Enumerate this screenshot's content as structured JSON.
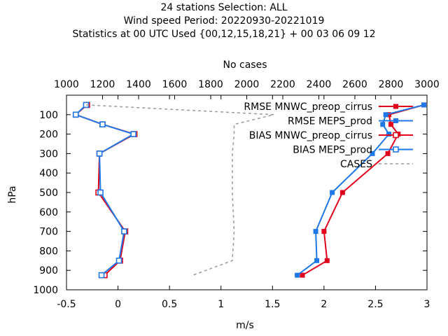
{
  "chart_data": {
    "type": "line",
    "title_lines": [
      "24 stations Selection: ALL",
      "Wind speed  Period: 20220930-20221019",
      "Statistics at 00 UTC  Used {00,12,15,18,21} + 00 03 06 09 12"
    ],
    "x2label": "No cases",
    "xlabel": "m/s",
    "ylabel": "hPa",
    "xlim": [
      -0.5,
      3
    ],
    "ylim": [
      1000,
      0
    ],
    "x2lim": [
      1000,
      3000
    ],
    "xticks": [
      "-0.5",
      "0",
      "0.5",
      "1",
      "1.5",
      "2",
      "2.5",
      "3"
    ],
    "x2ticks": [
      "1000",
      "1200",
      "1400",
      "1600",
      "1800",
      "2000",
      "2200",
      "2400",
      "2600",
      "2800",
      "3000"
    ],
    "yticks": [
      "100",
      "200",
      "300",
      "400",
      "500",
      "600",
      "700",
      "800",
      "900",
      "1000"
    ],
    "grid": false,
    "legend_position": "top-right",
    "pressure_levels": [
      50,
      100,
      150,
      200,
      300,
      500,
      700,
      850,
      925
    ],
    "series": [
      {
        "name": "RMSE MNWC_preop_cirrus",
        "color": "#e0001b",
        "marker": "filled-square",
        "axis": "x",
        "values": [
          2.97,
          2.63,
          2.65,
          2.72,
          2.62,
          2.18,
          2.0,
          2.03,
          1.79
        ]
      },
      {
        "name": "RMSE MEPS_prod",
        "color": "#1f78e8",
        "marker": "filled-square",
        "axis": "x",
        "values": [
          2.97,
          2.6,
          2.57,
          2.63,
          2.47,
          2.08,
          1.92,
          1.93,
          1.74
        ]
      },
      {
        "name": "BIAS MNWC_preop_cirrus",
        "color": "#e0001b",
        "marker": "open-square",
        "axis": "x",
        "values": [
          -0.3,
          -0.41,
          -0.15,
          0.16,
          -0.18,
          -0.19,
          0.07,
          0.02,
          -0.13
        ]
      },
      {
        "name": "BIAS MEPS_prod",
        "color": "#1f78e8",
        "marker": "open-square",
        "axis": "x",
        "values": [
          -0.31,
          -0.41,
          -0.15,
          0.15,
          -0.18,
          -0.17,
          0.06,
          0.01,
          -0.16
        ]
      },
      {
        "name": "CASES",
        "color": "#999999",
        "marker": "none",
        "dashed": true,
        "axis": "x2",
        "levels": [
          50,
          100,
          150,
          200,
          300,
          500,
          700,
          850,
          925
        ],
        "values": [
          1110,
          2150,
          1930,
          1930,
          1920,
          1920,
          1930,
          1920,
          1700
        ]
      }
    ]
  }
}
